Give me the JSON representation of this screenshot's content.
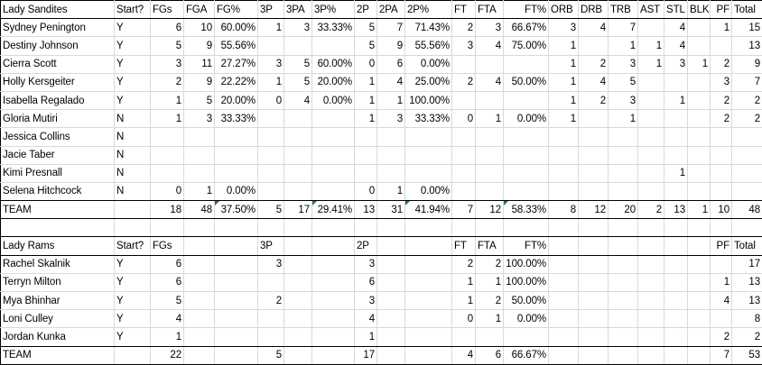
{
  "colors": {
    "background": "#ffffff",
    "gridline": "#d9d9d9",
    "section_border": "#000000",
    "error_indicator_green": "#1e7b34"
  },
  "sheet": {
    "teams": [
      "Lady Sandites",
      "Lady Rams"
    ],
    "rows": [
      {
        "type": "header",
        "cells": [
          "Lady Sandites",
          "Start?",
          "FGs",
          "FGA",
          "FG%",
          "3P",
          "3PA",
          "3P%",
          "2P",
          "2PA",
          "2P%",
          "FT",
          "FTA",
          "FT%",
          "ORB",
          "DRB",
          "TRB",
          "AST",
          "STL",
          "BLK",
          "PF",
          "Total"
        ]
      },
      {
        "type": "player",
        "cells": [
          "Sydney Penington",
          "Y",
          "6",
          "10",
          "60.00%",
          "1",
          "3",
          "33.33%",
          "5",
          "7",
          "71.43%",
          "2",
          "3",
          "66.67%",
          "3",
          "4",
          "7",
          "",
          "4",
          "",
          "1",
          "15"
        ]
      },
      {
        "type": "player",
        "cells": [
          "Destiny Johnson",
          "Y",
          "5",
          "9",
          "55.56%",
          "",
          "",
          "",
          "5",
          "9",
          "55.56%",
          "3",
          "4",
          "75.00%",
          "1",
          "",
          "1",
          "1",
          "4",
          "",
          "",
          "13"
        ]
      },
      {
        "type": "player",
        "cells": [
          "Cierra Scott",
          "Y",
          "3",
          "11",
          "27.27%",
          "3",
          "5",
          "60.00%",
          "0",
          "6",
          "0.00%",
          "",
          "",
          "",
          "1",
          "2",
          "3",
          "1",
          "3",
          "1",
          "2",
          "9"
        ]
      },
      {
        "type": "player",
        "cells": [
          "Holly Kersgeiter",
          "Y",
          "2",
          "9",
          "22.22%",
          "1",
          "5",
          "20.00%",
          "1",
          "4",
          "25.00%",
          "2",
          "4",
          "50.00%",
          "1",
          "4",
          "5",
          "",
          "",
          "",
          "3",
          "7"
        ]
      },
      {
        "type": "player",
        "cells": [
          "Isabella Regalado",
          "Y",
          "1",
          "5",
          "20.00%",
          "0",
          "4",
          "0.00%",
          "1",
          "1",
          "100.00%",
          "",
          "",
          "",
          "1",
          "2",
          "3",
          "",
          "1",
          "",
          "2",
          "2"
        ]
      },
      {
        "type": "player",
        "cells": [
          "Gloria Mutiri",
          "N",
          "1",
          "3",
          "33.33%",
          "",
          "",
          "",
          "1",
          "3",
          "33.33%",
          "0",
          "1",
          "0.00%",
          "1",
          "",
          "1",
          "",
          "",
          "",
          "2",
          "2"
        ]
      },
      {
        "type": "player",
        "cells": [
          "Jessica Collins",
          "N",
          "",
          "",
          "",
          "",
          "",
          "",
          "",
          "",
          "",
          "",
          "",
          "",
          "",
          "",
          "",
          "",
          "",
          "",
          "",
          ""
        ]
      },
      {
        "type": "player",
        "cells": [
          "Jacie Taber",
          "N",
          "",
          "",
          "",
          "",
          "",
          "",
          "",
          "",
          "",
          "",
          "",
          "",
          "",
          "",
          "",
          "",
          "",
          "",
          "",
          ""
        ]
      },
      {
        "type": "player",
        "cells": [
          "Kimi Presnall",
          "N",
          "",
          "",
          "",
          "",
          "",
          "",
          "",
          "",
          "",
          "",
          "",
          "",
          "",
          "",
          "",
          "",
          "1",
          "",
          "",
          ""
        ]
      },
      {
        "type": "player",
        "cells": [
          "Selena Hitchcock",
          "N",
          "0",
          "1",
          "0.00%",
          "",
          "",
          "",
          "0",
          "1",
          "0.00%",
          "",
          "",
          "",
          "",
          "",
          "",
          "",
          "",
          "",
          "",
          ""
        ]
      },
      {
        "type": "team",
        "error_cells": [
          4,
          7,
          10,
          13
        ],
        "cells": [
          "TEAM",
          "",
          "18",
          "48",
          "37.50%",
          "5",
          "17",
          "29.41%",
          "13",
          "31",
          "41.94%",
          "7",
          "12",
          "58.33%",
          "8",
          "12",
          "20",
          "2",
          "13",
          "1",
          "10",
          "48"
        ]
      },
      {
        "type": "blank",
        "cells": [
          "",
          "",
          "",
          "",
          "",
          "",
          "",
          "",
          "",
          "",
          "",
          "",
          "",
          "",
          "",
          "",
          "",
          "",
          "",
          "",
          "",
          ""
        ]
      },
      {
        "type": "header",
        "cells": [
          "Lady Rams",
          "Start?",
          "FGs",
          "",
          "",
          "3P",
          "",
          "",
          "2P",
          "",
          "",
          "FT",
          "FTA",
          "FT%",
          "",
          "",
          "",
          "",
          "",
          "",
          "PF",
          "Total"
        ]
      },
      {
        "type": "player",
        "cells": [
          "Rachel Skalnik",
          "Y",
          "6",
          "",
          "",
          "3",
          "",
          "",
          "3",
          "",
          "",
          "2",
          "2",
          "100.00%",
          "",
          "",
          "",
          "",
          "",
          "",
          "",
          "17"
        ]
      },
      {
        "type": "player",
        "cells": [
          "Terryn Milton",
          "Y",
          "6",
          "",
          "",
          "",
          "",
          "",
          "6",
          "",
          "",
          "1",
          "1",
          "100.00%",
          "",
          "",
          "",
          "",
          "",
          "",
          "1",
          "13"
        ]
      },
      {
        "type": "player",
        "cells": [
          "Mya Bhinhar",
          "Y",
          "5",
          "",
          "",
          "2",
          "",
          "",
          "3",
          "",
          "",
          "1",
          "2",
          "50.00%",
          "",
          "",
          "",
          "",
          "",
          "",
          "4",
          "13"
        ]
      },
      {
        "type": "player",
        "cells": [
          "Loni Culley",
          "Y",
          "4",
          "",
          "",
          "",
          "",
          "",
          "4",
          "",
          "",
          "0",
          "1",
          "0.00%",
          "",
          "",
          "",
          "",
          "",
          "",
          "",
          "8"
        ]
      },
      {
        "type": "player",
        "cells": [
          "Jordan Kunka",
          "Y",
          "1",
          "",
          "",
          "",
          "",
          "",
          "1",
          "",
          "",
          "",
          "",
          "",
          "",
          "",
          "",
          "",
          "",
          "",
          "2",
          "2"
        ]
      },
      {
        "type": "team",
        "cells": [
          "TEAM",
          "",
          "22",
          "",
          "",
          "5",
          "",
          "",
          "17",
          "",
          "",
          "4",
          "6",
          "66.67%",
          "",
          "",
          "",
          "",
          "",
          "",
          "7",
          "53"
        ]
      }
    ]
  }
}
